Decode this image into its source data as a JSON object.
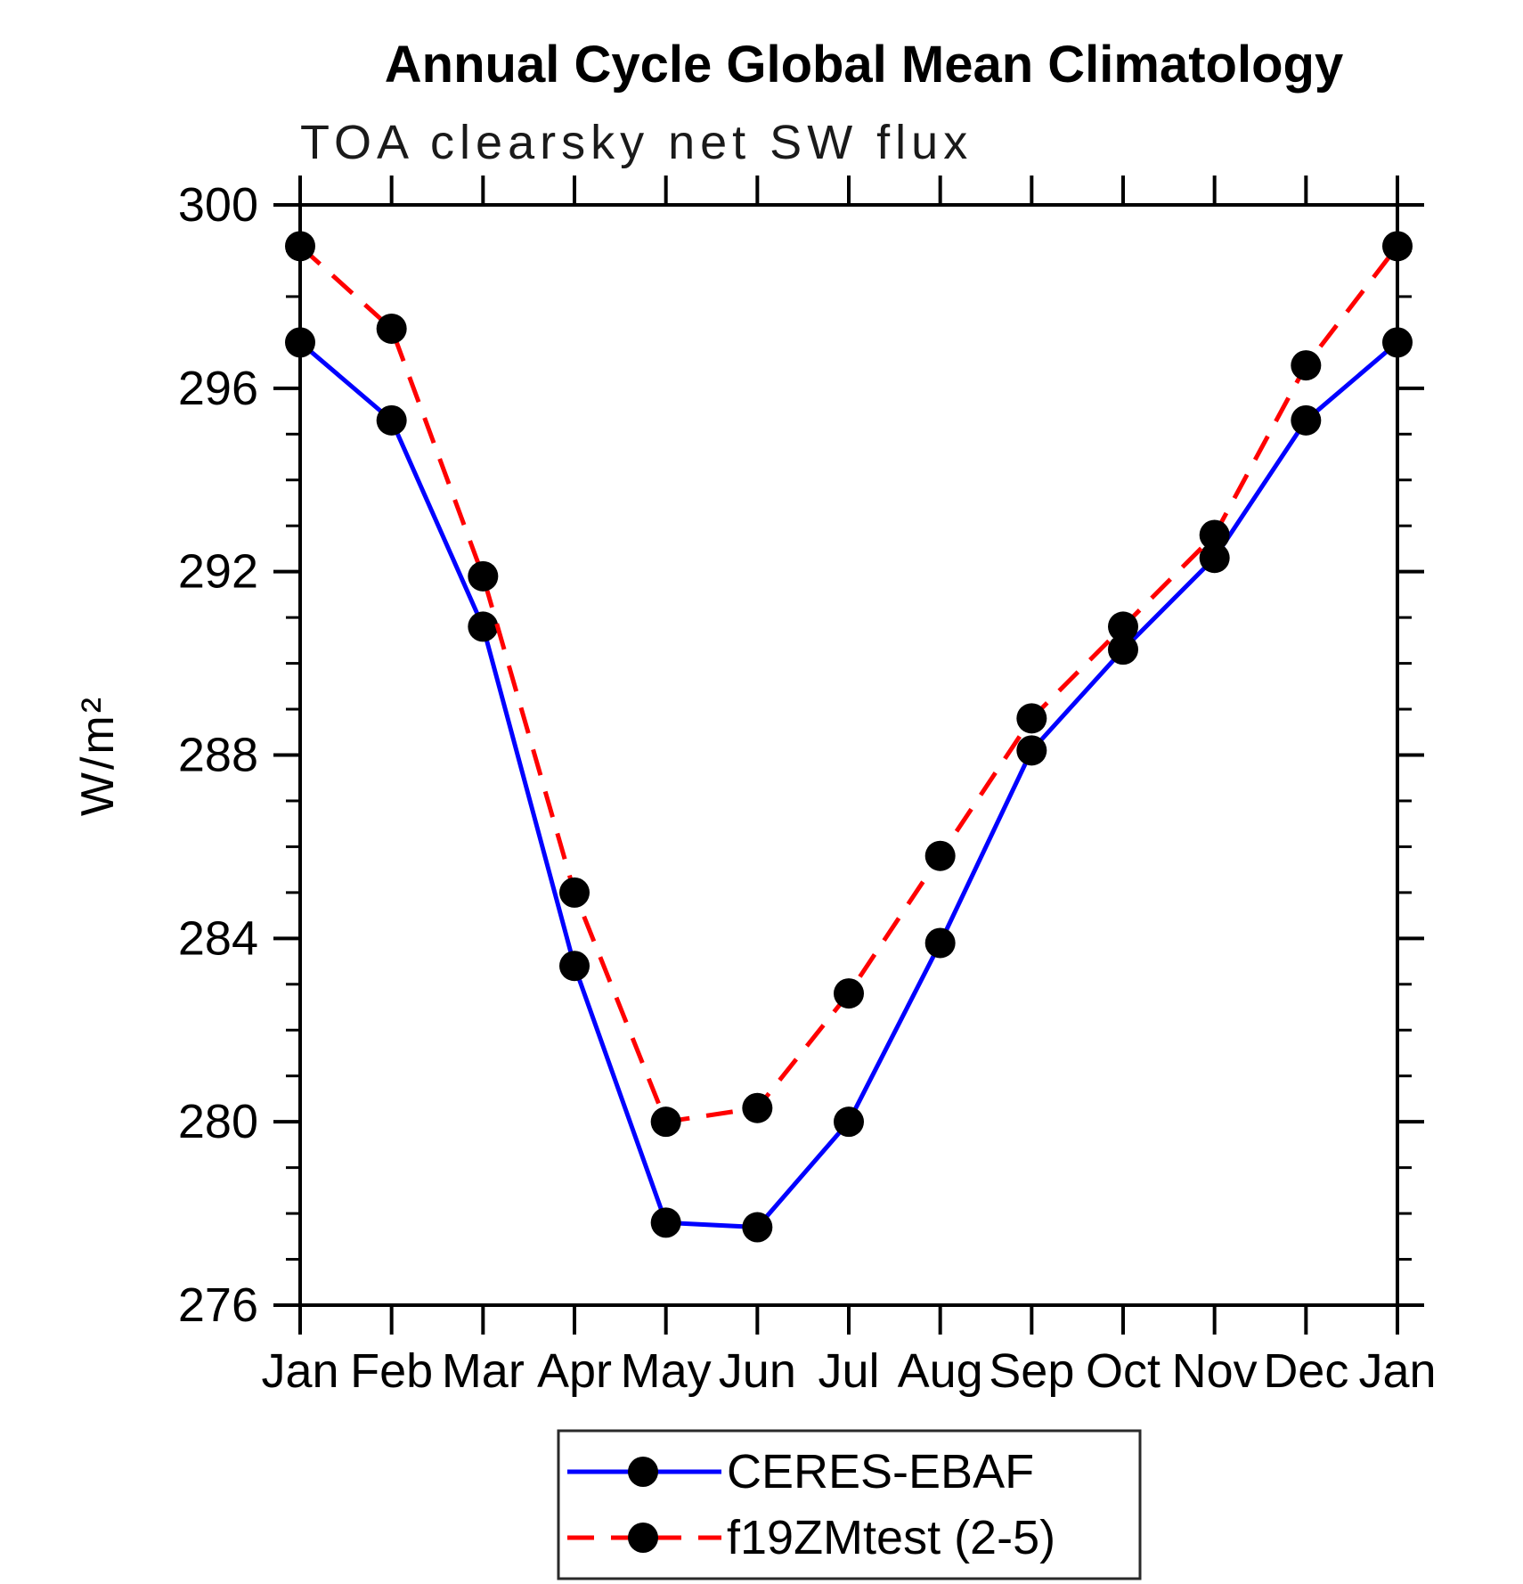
{
  "chart_data": {
    "type": "line",
    "title": "Annual Cycle Global Mean Climatology",
    "subtitle": "TOA clearsky net SW flux",
    "xlabel": "",
    "ylabel": "W/m²",
    "categories": [
      "Jan",
      "Feb",
      "Mar",
      "Apr",
      "May",
      "Jun",
      "Jul",
      "Aug",
      "Sep",
      "Oct",
      "Nov",
      "Dec",
      "Jan"
    ],
    "ylim": [
      276,
      300
    ],
    "y_major_ticks": [
      276,
      280,
      284,
      288,
      292,
      296,
      300
    ],
    "y_minor_tick_step": 1,
    "grid": false,
    "legend_position": "bottom-center",
    "marker": "filled-circle",
    "marker_color": "#000000",
    "series": [
      {
        "name": "CERES-EBAF",
        "color": "#0000ff",
        "line_style": "solid",
        "values": [
          297.0,
          295.3,
          290.8,
          283.4,
          277.8,
          277.7,
          280.0,
          283.9,
          288.1,
          290.3,
          292.3,
          295.3,
          297.0
        ]
      },
      {
        "name": "f19ZMtest (2-5)",
        "color": "#ff0000",
        "line_style": "dashed",
        "values": [
          299.1,
          297.3,
          291.9,
          285.0,
          280.0,
          280.3,
          282.8,
          285.8,
          288.8,
          290.8,
          292.8,
          296.5,
          299.1
        ]
      }
    ]
  }
}
